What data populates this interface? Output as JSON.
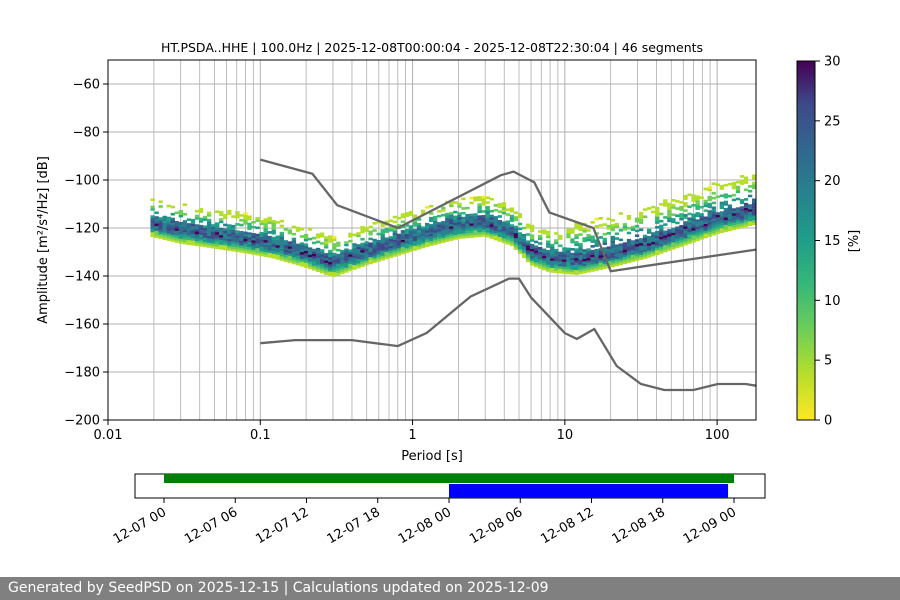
{
  "chart_data": [
    {
      "type": "heatmap",
      "title": "HT.PSDA..HHE | 100.0Hz | 2025-12-08T00:00:04 - 2025-12-08T22:30:04 | 46 segments",
      "xlabel": "Period [s]",
      "ylabel": "Amplitude [m²/s⁴/Hz] [dB]",
      "xscale": "log",
      "xlim": [
        0.01,
        180
      ],
      "ylim": [
        -200,
        -50
      ],
      "x_ticks": [
        "0.01",
        "0.1",
        "1",
        "10",
        "100"
      ],
      "y_ticks": [
        "−60",
        "−80",
        "−100",
        "−120",
        "−140",
        "−160",
        "−180",
        "−200"
      ],
      "grid": true,
      "colormap": "viridis_r",
      "colorbar": {
        "label": "[%]",
        "range": [
          0,
          30
        ],
        "ticks": [
          "0",
          "5",
          "10",
          "15",
          "20",
          "25",
          "30"
        ]
      },
      "ppsd_mode_path": [
        [
          0.019,
          -118
        ],
        [
          0.03,
          -121
        ],
        [
          0.05,
          -123
        ],
        [
          0.08,
          -125
        ],
        [
          0.12,
          -127
        ],
        [
          0.2,
          -131
        ],
        [
          0.3,
          -135
        ],
        [
          0.5,
          -130
        ],
        [
          0.8,
          -126
        ],
        [
          1.3,
          -122
        ],
        [
          2,
          -119
        ],
        [
          3,
          -118
        ],
        [
          4.5,
          -122
        ],
        [
          6,
          -130
        ],
        [
          8,
          -133
        ],
        [
          12,
          -134
        ],
        [
          20,
          -131
        ],
        [
          35,
          -127
        ],
        [
          60,
          -122
        ],
        [
          100,
          -117
        ],
        [
          180,
          -113
        ]
      ],
      "reference_curves": [
        {
          "name": "high-noise-model",
          "points": [
            [
              0.1,
              -91.5
            ],
            [
              0.22,
              -97.4
            ],
            [
              0.32,
              -110.5
            ],
            [
              0.8,
              -120
            ],
            [
              3.8,
              -98
            ],
            [
              4.6,
              -96.5
            ],
            [
              6.3,
              -101
            ],
            [
              7.9,
              -113.5
            ],
            [
              15.4,
              -120
            ],
            [
              20,
              -138
            ],
            [
              180,
              -129
            ]
          ]
        },
        {
          "name": "low-noise-model",
          "points": [
            [
              0.1,
              -168
            ],
            [
              0.17,
              -166.7
            ],
            [
              0.4,
              -166.7
            ],
            [
              0.8,
              -169.2
            ],
            [
              1.24,
              -163.7
            ],
            [
              2.4,
              -148.6
            ],
            [
              4.3,
              -141.1
            ],
            [
              5,
              -141.1
            ],
            [
              6,
              -149
            ],
            [
              10,
              -163.8
            ],
            [
              12,
              -166.2
            ],
            [
              15.6,
              -162.1
            ],
            [
              21.9,
              -177.5
            ],
            [
              31.6,
              -185
            ],
            [
              45,
              -187.5
            ],
            [
              70,
              -187.5
            ],
            [
              101,
              -185
            ],
            [
              154,
              -185
            ],
            [
              180,
              -185.7
            ]
          ]
        }
      ]
    },
    {
      "type": "timeline",
      "x_ticks": [
        "12-07 00",
        "12-07 06",
        "12-07 12",
        "12-07 18",
        "12-08 00",
        "12-08 06",
        "12-08 12",
        "12-08 18",
        "12-09 00"
      ],
      "bars": [
        {
          "name": "available-data",
          "start_hours": 0,
          "end_hours": 48,
          "color": "#008000"
        },
        {
          "name": "used-data",
          "start_hours": 24,
          "end_hours": 47.5,
          "color": "#0000ff"
        }
      ]
    }
  ],
  "footer": "Generated by SeedPSD on 2025-12-15 | Calculations updated on 2025-12-09"
}
